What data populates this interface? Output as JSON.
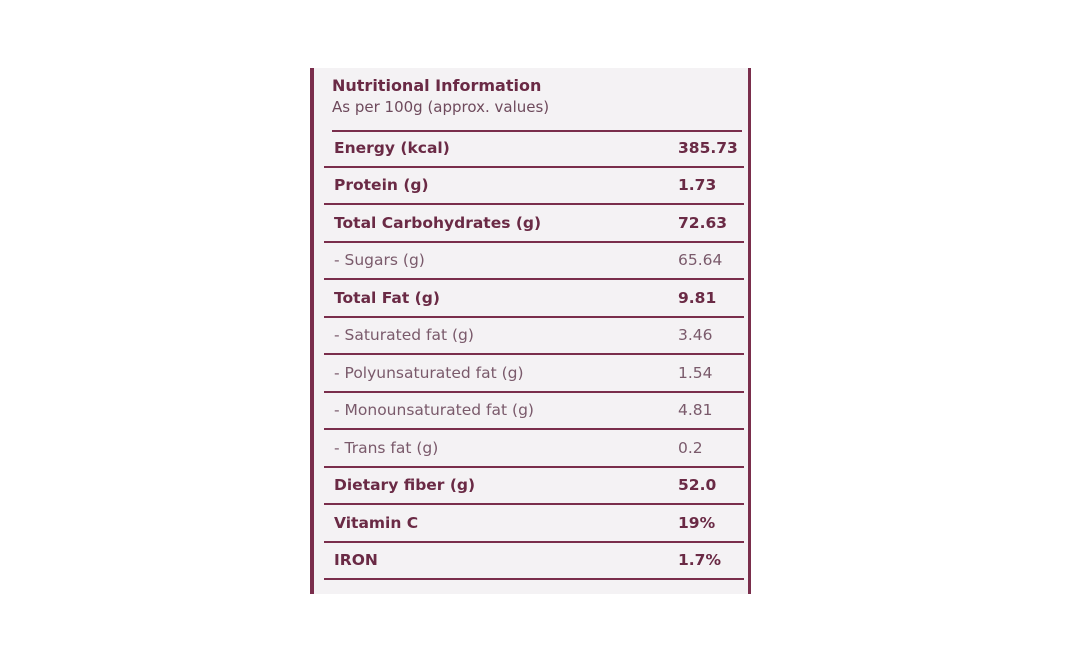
{
  "header": {
    "title": "Nutritional Information",
    "subtitle": "As per 100g (approx. values)"
  },
  "rows": [
    {
      "name": "Energy (kcal)",
      "value": "385.73",
      "style": "bold"
    },
    {
      "name": "Protein (g)",
      "value": "1.73",
      "style": "bold"
    },
    {
      "name": "Total Carbohydrates (g)",
      "value": "72.63",
      "style": "bold"
    },
    {
      "name": "- Sugars (g)",
      "value": "65.64",
      "style": "sub"
    },
    {
      "name": "Total Fat (g)",
      "value": "9.81",
      "style": "bold"
    },
    {
      "name": "- Saturated fat (g)",
      "value": "3.46",
      "style": "sub"
    },
    {
      "name": "- Polyunsaturated fat (g)",
      "value": "1.54",
      "style": "sub"
    },
    {
      "name": "- Monounsaturated fat (g)",
      "value": "4.81",
      "style": "sub"
    },
    {
      "name": "- Trans fat (g)",
      "value": "0.2",
      "style": "sub"
    },
    {
      "name": "Dietary fiber (g)",
      "value": "52.0",
      "style": "bold"
    },
    {
      "name": "Vitamin C",
      "value": "19%",
      "style": "bold"
    },
    {
      "name": "IRON",
      "value": "1.7%",
      "style": "bold"
    }
  ],
  "colors": {
    "accent": "#7a2e4c",
    "panel_bg": "#f4f2f4"
  }
}
